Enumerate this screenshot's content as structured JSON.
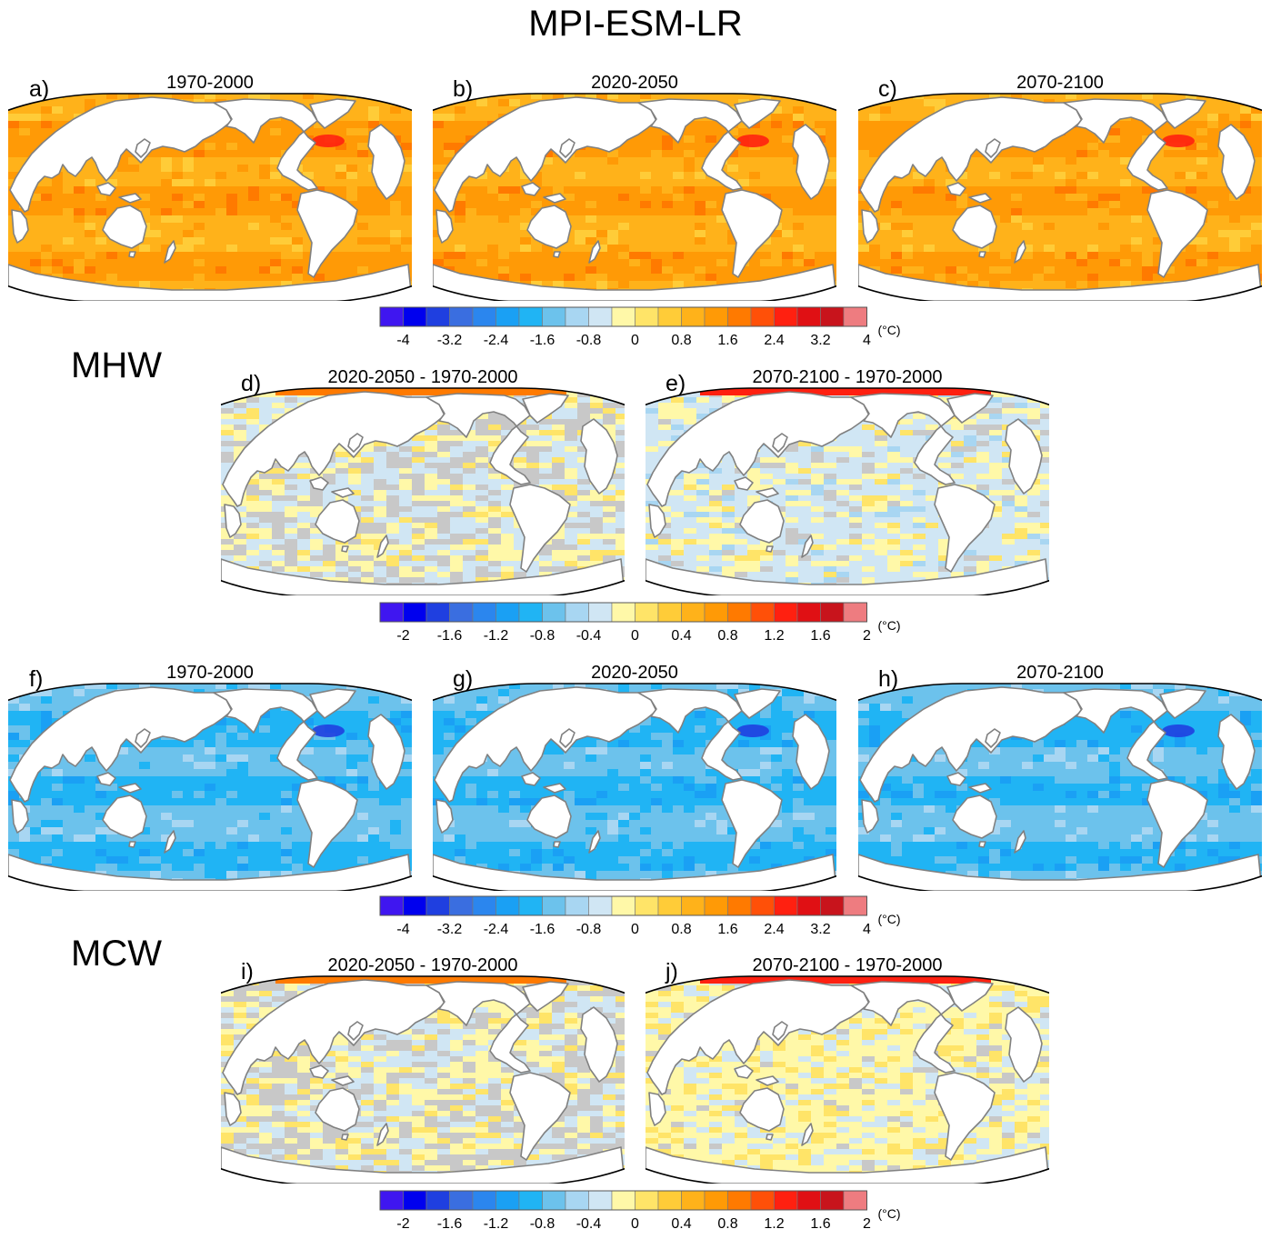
{
  "figure_title": "MPI-ESM-LR",
  "sections": {
    "mhw": "MHW",
    "mcw": "MCW"
  },
  "units": "(°C)",
  "palette": [
    "#3f16f0",
    "#0000ee",
    "#1f3fe0",
    "#3a6ee0",
    "#2b86ee",
    "#1aa0f4",
    "#20b4f4",
    "#6cc2ec",
    "#a8d6f2",
    "#d0e6f4",
    "#fff8a8",
    "#ffe468",
    "#ffcc38",
    "#ffb21a",
    "#ff9a06",
    "#ff7a00",
    "#ff5008",
    "#ff2010",
    "#e01014",
    "#c8141c",
    "#ee7c80"
  ],
  "chart_data": [
    {
      "type": "heatmap",
      "panel": "a",
      "label": "a)",
      "title": "1970-2000",
      "variable": "MHW",
      "kind": "absolute",
      "units": "(°C)"
    },
    {
      "type": "heatmap",
      "panel": "b",
      "label": "b)",
      "title": "2020-2050",
      "variable": "MHW",
      "kind": "absolute",
      "units": "(°C)"
    },
    {
      "type": "heatmap",
      "panel": "c",
      "label": "c)",
      "title": "2070-2100",
      "variable": "MHW",
      "kind": "absolute",
      "units": "(°C)"
    },
    {
      "type": "heatmap",
      "panel": "d",
      "label": "d)",
      "title": "2020-2050 - 1970-2000",
      "variable": "MHW",
      "kind": "difference",
      "units": "(°C)"
    },
    {
      "type": "heatmap",
      "panel": "e",
      "label": "e)",
      "title": "2070-2100 - 1970-2000",
      "variable": "MHW",
      "kind": "difference",
      "units": "(°C)"
    },
    {
      "type": "heatmap",
      "panel": "f",
      "label": "f)",
      "title": "1970-2000",
      "variable": "MCW",
      "kind": "absolute",
      "units": "(°C)"
    },
    {
      "type": "heatmap",
      "panel": "g",
      "label": "g)",
      "title": "2020-2050",
      "variable": "MCW",
      "kind": "absolute",
      "units": "(°C)"
    },
    {
      "type": "heatmap",
      "panel": "h",
      "label": "h)",
      "title": "2070-2100",
      "variable": "MCW",
      "kind": "absolute",
      "units": "(°C)"
    },
    {
      "type": "heatmap",
      "panel": "i",
      "label": "i)",
      "title": "2020-2050 - 1970-2000",
      "variable": "MCW",
      "kind": "difference",
      "units": "(°C)"
    },
    {
      "type": "heatmap",
      "panel": "j",
      "label": "j)",
      "title": "2070-2100 - 1970-2000",
      "variable": "MCW",
      "kind": "difference",
      "units": "(°C)"
    }
  ],
  "colorbars": {
    "absolute": {
      "range": [
        -4.4,
        4.4
      ],
      "ticks": [
        "-4",
        "-3.2",
        "-2.4",
        "-1.6",
        "-0.8",
        "0",
        "0.8",
        "1.6",
        "2.4",
        "3.2",
        "4"
      ]
    },
    "difference": {
      "range": [
        -2.2,
        2.2
      ],
      "ticks": [
        "-2",
        "-1.6",
        "-1.2",
        "-0.8",
        "-0.4",
        "0",
        "0.4",
        "0.8",
        "1.2",
        "1.6",
        "2"
      ]
    }
  }
}
